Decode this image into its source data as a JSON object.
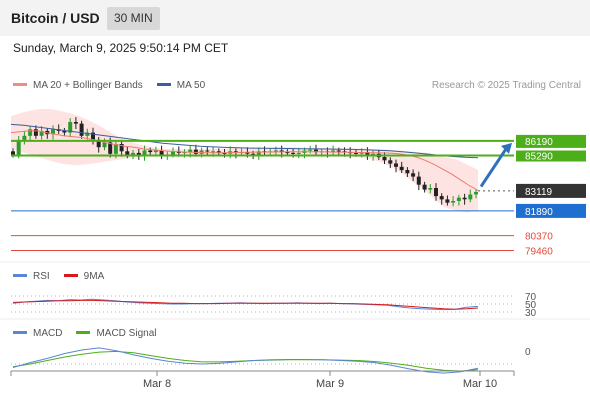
{
  "header": {
    "title": "Bitcoin / USD",
    "timeframe": "30 MIN"
  },
  "subheader": {
    "datetime": "Sunday, March 9, 2025 9:50:14 PM CET"
  },
  "copyright": "Research © 2025 Trading Central",
  "legends": {
    "price": [
      {
        "label": "MA 20 + Bollinger Bands",
        "color": "#f28b82"
      },
      {
        "label": "MA 50",
        "color": "#3a5f9a"
      }
    ],
    "rsi": [
      {
        "label": "RSI",
        "color": "#5b86d6"
      },
      {
        "label": "9MA",
        "color": "#d7191c"
      }
    ],
    "macd": [
      {
        "label": "MACD",
        "color": "#5b86d6"
      },
      {
        "label": "MACD Signal",
        "color": "#4caf1a"
      }
    ]
  },
  "chart_data": {
    "type": "candlestick",
    "x_ticks": [
      "Mar 8",
      "Mar 9",
      "Mar 10"
    ],
    "price_panel": {
      "ylim": [
        79000,
        88700
      ],
      "close_path": [
        85350,
        86250,
        86500,
        86900,
        86500,
        86800,
        86600,
        86900,
        86800,
        86700,
        87350,
        87250,
        86500,
        86700,
        86250,
        85800,
        86100,
        85400,
        86000,
        85550,
        85300,
        85450,
        85300,
        85600,
        85500,
        85600,
        85350,
        85350,
        85550,
        85450,
        85500,
        85650,
        85400,
        85600,
        85550,
        85550,
        85450,
        85400,
        85550,
        85450,
        85500,
        85400,
        85350,
        85550,
        85500,
        85550,
        85600,
        85500,
        85450,
        85400,
        85450,
        85600,
        85650,
        85500,
        85550,
        85500,
        85600,
        85550,
        85500,
        85450,
        85400,
        85500,
        85300,
        85400,
        85200,
        85000,
        84800,
        84600,
        84400,
        84200,
        84000,
        83500,
        83200,
        83300,
        82800,
        82600,
        82400,
        82500,
        82700,
        82600,
        82900,
        83050
      ],
      "ma20": [
        86700,
        86750,
        86800,
        86800,
        86700,
        86600,
        86500,
        86450,
        86400,
        86300,
        86200,
        86050,
        85950,
        85850,
        85800,
        85700,
        85650,
        85600,
        85550,
        85520,
        85500,
        85480,
        85470,
        85460,
        85460,
        85470,
        85480,
        85490,
        85500,
        85500,
        85510,
        85520,
        85520,
        85520,
        85520,
        85520,
        85510,
        85500,
        85490,
        85480,
        85470,
        85460,
        85450,
        85440,
        85400,
        85320,
        85200,
        85000,
        84750,
        84450,
        84150,
        83800,
        83450,
        83150
      ],
      "ma50": [
        87200,
        87150,
        87050,
        86950,
        86850,
        86750,
        86650,
        86550,
        86450,
        86350,
        86250,
        86150,
        86050,
        85980,
        85920,
        85860,
        85820,
        85790,
        85770,
        85750,
        85740,
        85730,
        85720,
        85710,
        85700,
        85690,
        85680,
        85670,
        85650,
        85620,
        85580,
        85520,
        85450,
        85380,
        85300,
        85230,
        85180,
        85150
      ],
      "bb_upper": [
        87700,
        87900,
        88050,
        88150,
        88150,
        88050,
        87900,
        87700,
        87450,
        87150,
        86800,
        86450,
        86200,
        86000,
        85850,
        85750,
        85700,
        85700,
        85700,
        85700,
        85700,
        85700,
        85720,
        85740,
        85750,
        85760,
        85780,
        85790,
        85800,
        85800,
        85780,
        85760,
        85750,
        85740,
        85730,
        85720,
        85710,
        85700,
        85680,
        85650,
        85600,
        85550,
        85500,
        85450,
        85300,
        85150,
        85000,
        84700,
        84400
      ],
      "bb_lower": [
        85700,
        85500,
        85300,
        85100,
        84900,
        84750,
        84700,
        84750,
        84850,
        84950,
        85050,
        85150,
        85200,
        85250,
        85280,
        85300,
        85310,
        85320,
        85330,
        85330,
        85330,
        85330,
        85320,
        85320,
        85320,
        85310,
        85300,
        85290,
        85280,
        85270,
        85260,
        85250,
        85200,
        85100,
        84900,
        84600,
        84200,
        83700,
        83200,
        82600,
        82100,
        81900,
        81800,
        81900
      ],
      "support_resistance": [
        {
          "value": "86190",
          "color": "#4caf1a",
          "kind": "resistance"
        },
        {
          "value": "85290",
          "color": "#4caf1a",
          "kind": "resistance"
        },
        {
          "value": "83119",
          "color": "#333333",
          "kind": "last-price"
        },
        {
          "value": "81890",
          "color": "#1f6fd1",
          "kind": "pivot"
        },
        {
          "value": "80370",
          "color": "#e04b3e",
          "kind": "support"
        },
        {
          "value": "79460",
          "color": "#e04b3e",
          "kind": "support"
        }
      ],
      "target_arrow": {
        "from": 83200,
        "to": 86190,
        "direction": "up"
      }
    },
    "rsi_panel": {
      "ylim": [
        20,
        80
      ],
      "levels": [
        "70",
        "50",
        "30"
      ],
      "rsi": [
        52,
        55,
        57,
        59,
        58,
        61,
        60,
        62,
        60,
        58,
        55,
        53,
        52,
        51,
        50,
        50,
        51,
        51,
        52,
        52,
        53,
        52,
        51,
        52,
        52,
        53,
        52,
        51,
        52,
        51,
        50,
        49,
        48,
        47,
        43,
        40,
        38,
        37,
        36,
        37,
        42,
        44
      ],
      "ma9": [
        54,
        55,
        56,
        57,
        58,
        58,
        59,
        59,
        58,
        57,
        56,
        55,
        54,
        53,
        52,
        52,
        51,
        51,
        51,
        52,
        52,
        52,
        52,
        52,
        52,
        52,
        52,
        52,
        52,
        51,
        51,
        50,
        49,
        48,
        46,
        44,
        42,
        40,
        38,
        37,
        38,
        40
      ]
    },
    "macd_panel": {
      "zero_label": "0",
      "macd": [
        -0.25,
        0.1,
        0.4,
        0.75,
        1.0,
        1.15,
        0.95,
        0.65,
        0.4,
        0.2,
        0.05,
        0.0,
        0.05,
        0.15,
        0.25,
        0.3,
        0.32,
        0.32,
        0.3,
        0.25,
        0.2,
        0.1,
        -0.1,
        -0.35,
        -0.55,
        -0.65,
        -0.55,
        -0.3
      ],
      "signal": [
        -0.2,
        0.0,
        0.25,
        0.5,
        0.7,
        0.85,
        0.9,
        0.8,
        0.6,
        0.4,
        0.25,
        0.15,
        0.15,
        0.2,
        0.25,
        0.28,
        0.3,
        0.3,
        0.3,
        0.28,
        0.25,
        0.18,
        0.05,
        -0.1,
        -0.3,
        -0.45,
        -0.5,
        -0.4
      ]
    }
  }
}
